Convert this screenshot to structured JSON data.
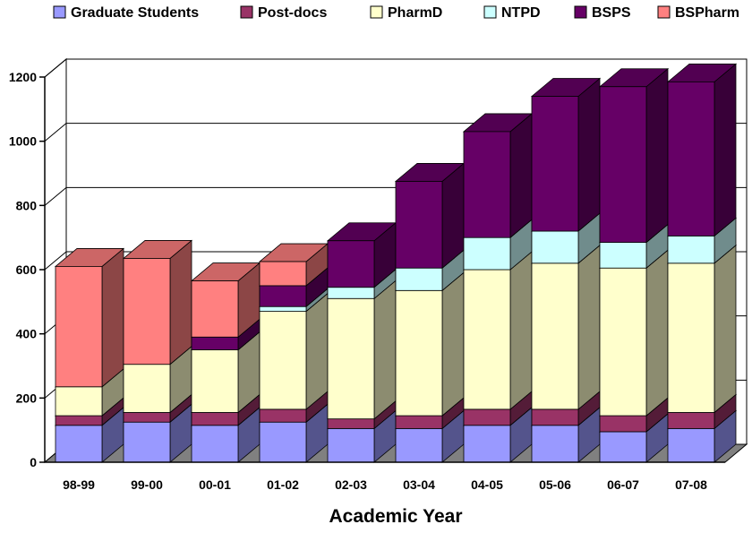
{
  "chart_data": {
    "type": "bar",
    "stacked": true,
    "three_d": true,
    "title": "",
    "xlabel": "Academic Year",
    "ylabel": "",
    "ylim": [
      0,
      1200
    ],
    "yticks": [
      0,
      200,
      400,
      600,
      800,
      1000,
      1200
    ],
    "grid": true,
    "legend_position": "top",
    "categories": [
      "98-99",
      "99-00",
      "00-01",
      "01-02",
      "02-03",
      "03-04",
      "04-05",
      "05-06",
      "06-07",
      "07-08"
    ],
    "series": [
      {
        "name": "Graduate Students",
        "color": "#9999ff",
        "values": [
          115,
          125,
          115,
          125,
          105,
          105,
          115,
          115,
          95,
          105
        ]
      },
      {
        "name": "Post-docs",
        "color": "#993366",
        "values": [
          30,
          30,
          40,
          40,
          30,
          40,
          50,
          50,
          50,
          50
        ]
      },
      {
        "name": "PharmD",
        "color": "#ffffcc",
        "values": [
          90,
          150,
          195,
          305,
          375,
          390,
          435,
          455,
          460,
          465
        ]
      },
      {
        "name": "NTPD",
        "color": "#ccffff",
        "values": [
          0,
          0,
          0,
          15,
          35,
          70,
          100,
          100,
          80,
          85
        ]
      },
      {
        "name": "BSPS",
        "color": "#660066",
        "values": [
          0,
          0,
          40,
          65,
          145,
          270,
          330,
          420,
          485,
          480
        ]
      },
      {
        "name": "BSPharm",
        "color": "#ff8080",
        "values": [
          375,
          330,
          175,
          75,
          0,
          0,
          0,
          0,
          0,
          0
        ]
      }
    ]
  }
}
